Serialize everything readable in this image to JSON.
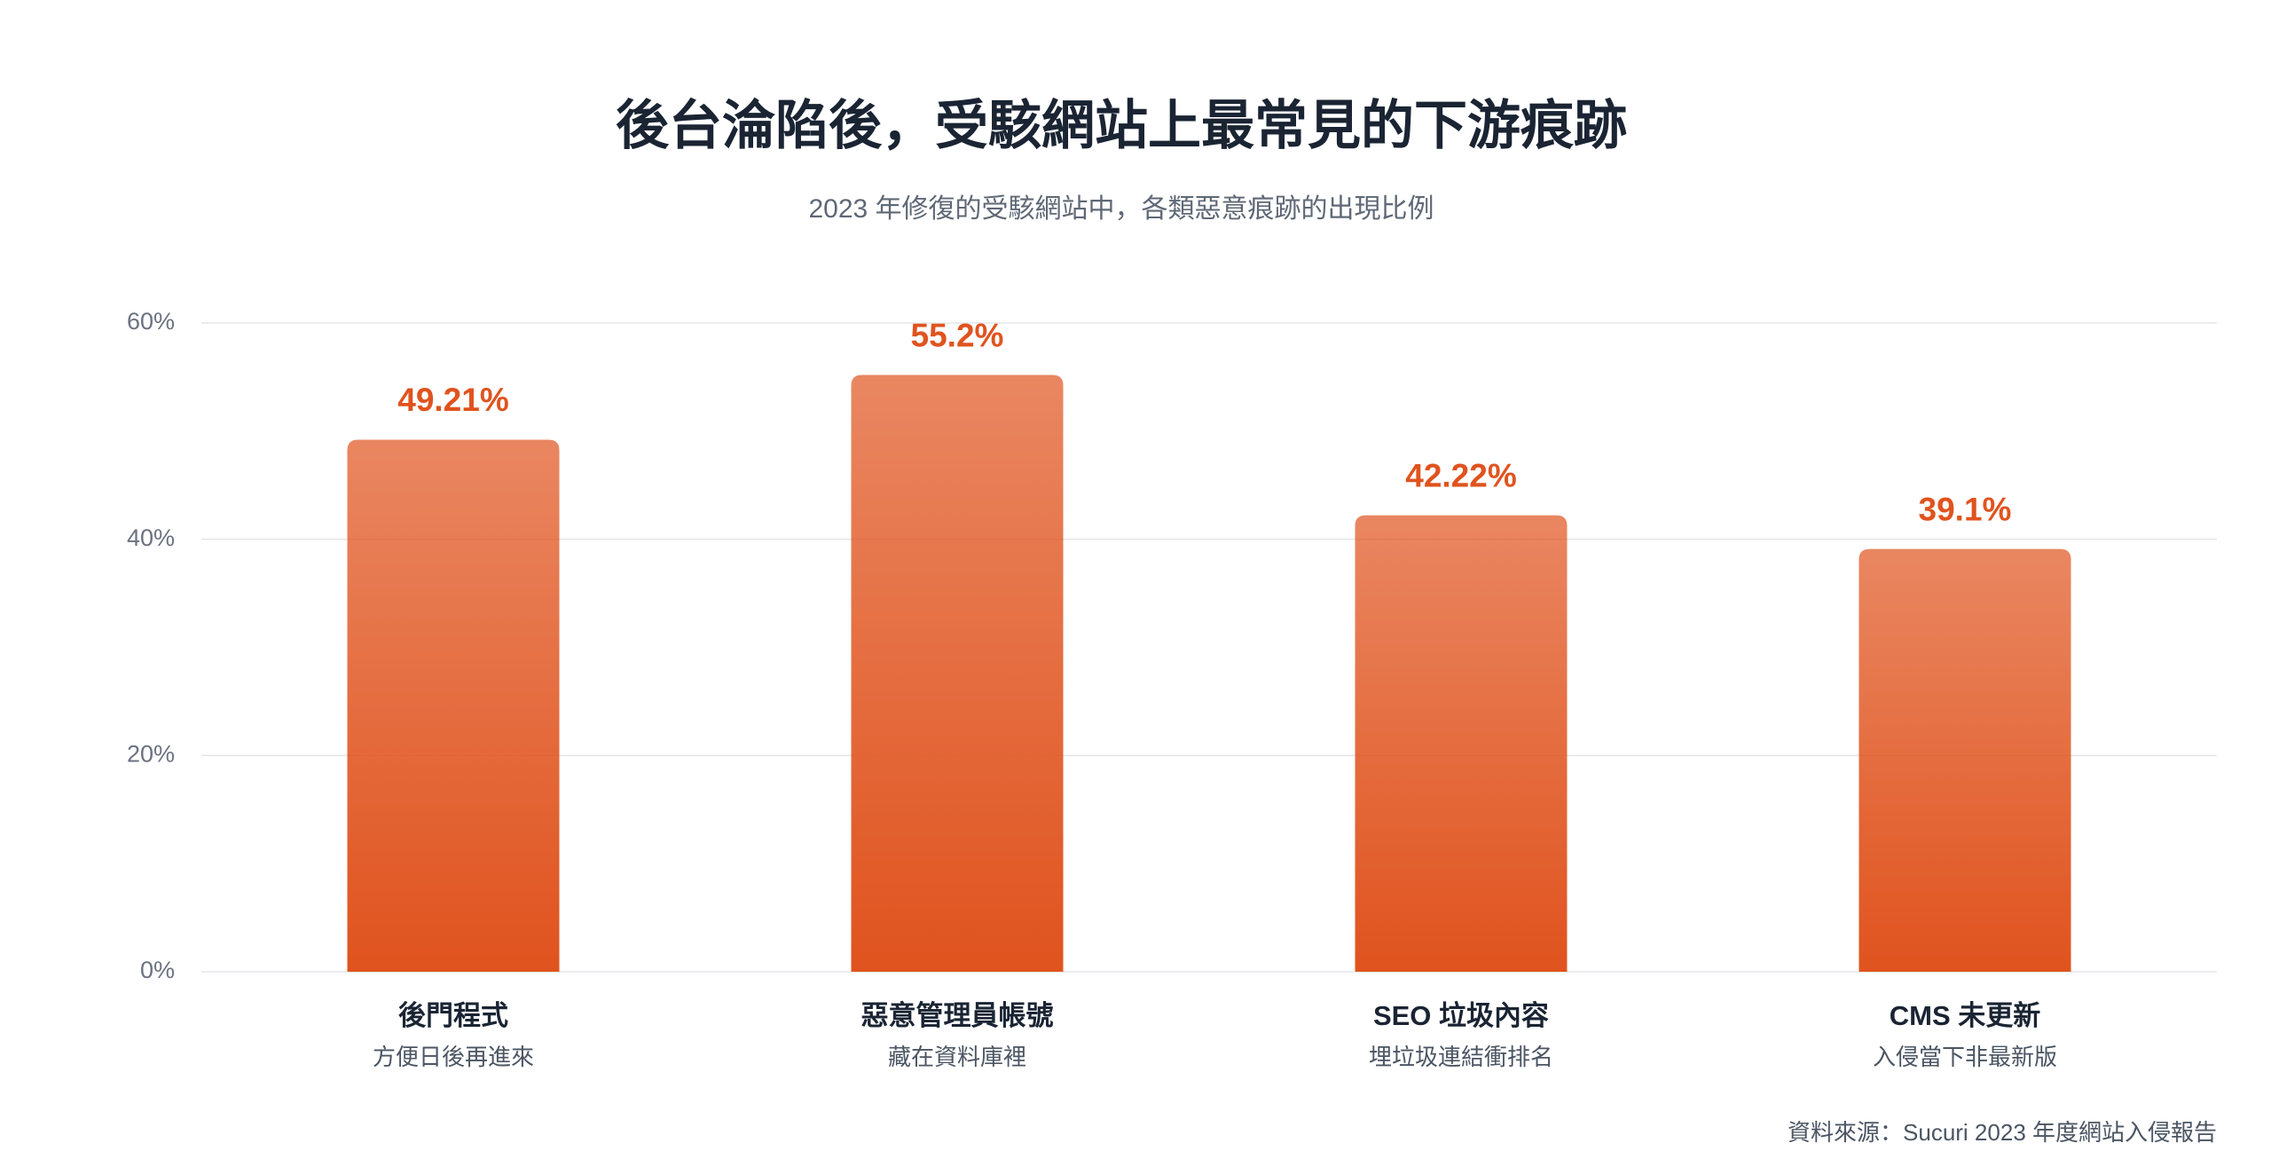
{
  "chart_data": {
    "type": "bar",
    "title": "後台淪陷後，受駭網站上最常見的下游痕跡",
    "subtitle": "2023 年修復的受駭網站中，各類惡意痕跡的出現比例",
    "categories": [
      "後門程式",
      "惡意管理員帳號",
      "SEO 垃圾內容",
      "CMS 未更新"
    ],
    "category_notes": [
      "方便日後再進來",
      "藏在資料庫裡",
      "埋垃圾連結衝排名",
      "入侵當下非最新版"
    ],
    "values": [
      49.21,
      55.2,
      42.22,
      39.1
    ],
    "value_labels": [
      "49.21%",
      "55.2%",
      "42.22%",
      "39.1%"
    ],
    "color": "#e0531e",
    "ylim": [
      0,
      60
    ],
    "yticks": [
      {
        "value": 0,
        "label": "0%"
      },
      {
        "value": 20,
        "label": "20%"
      },
      {
        "value": 40,
        "label": "40%"
      },
      {
        "value": 60,
        "label": "60%"
      }
    ],
    "grid": true,
    "source": "資料來源：Sucuri 2023 年度網站入侵報告"
  }
}
